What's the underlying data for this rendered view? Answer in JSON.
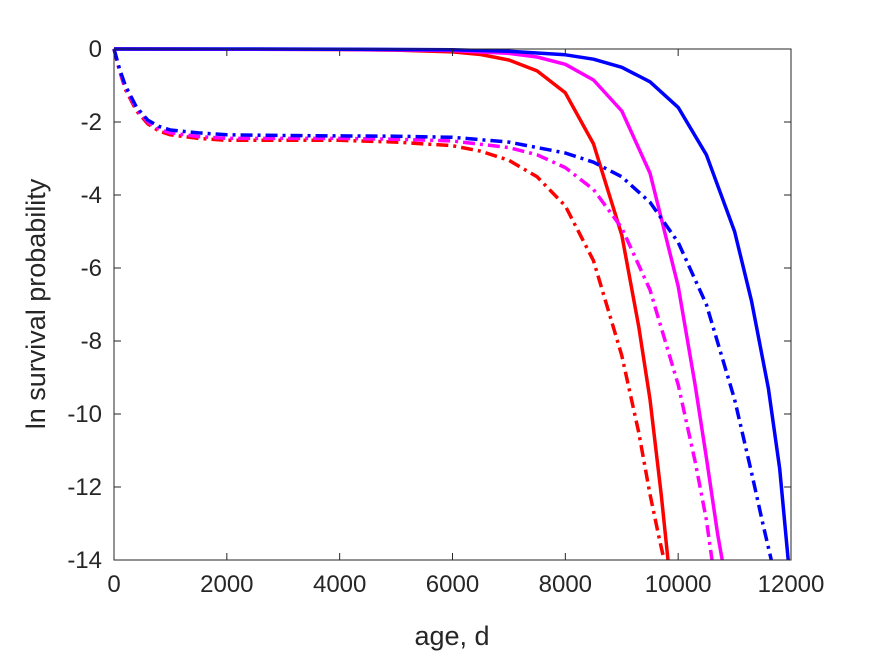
{
  "chart_data": {
    "type": "line",
    "title": "",
    "xlabel": "age, d",
    "ylabel": "ln survival probability",
    "xlim": [
      0,
      12000
    ],
    "ylim": [
      -14,
      0
    ],
    "xticks": [
      0,
      2000,
      4000,
      6000,
      8000,
      10000,
      12000
    ],
    "yticks": [
      0,
      -2,
      -4,
      -6,
      -8,
      -10,
      -12,
      -14
    ],
    "xtick_labels": [
      "0",
      "2000",
      "4000",
      "6000",
      "8000",
      "10000",
      "12000"
    ],
    "ytick_labels": [
      "0",
      "-2",
      "-4",
      "-6",
      "-8",
      "-10",
      "-12",
      "-14"
    ],
    "grid": false,
    "legend": "none",
    "series": [
      {
        "color": "#ff0000",
        "style": "solid",
        "x": [
          0,
          2000,
          4000,
          5000,
          6000,
          6500,
          7000,
          7500,
          8000,
          8500,
          9000,
          9300,
          9500,
          9700,
          9820
        ],
        "y": [
          0,
          -0.005,
          -0.015,
          -0.03,
          -0.08,
          -0.15,
          -0.3,
          -0.6,
          -1.2,
          -2.6,
          -5.1,
          -7.6,
          -9.6,
          -12.2,
          -14
        ]
      },
      {
        "color": "#ff00ff",
        "style": "solid",
        "x": [
          0,
          2000,
          4000,
          6000,
          7000,
          7500,
          8000,
          8500,
          9000,
          9500,
          10000,
          10300,
          10500,
          10700,
          10780
        ],
        "y": [
          0,
          -0.005,
          -0.01,
          -0.04,
          -0.12,
          -0.22,
          -0.42,
          -0.85,
          -1.7,
          -3.4,
          -6.5,
          -9.2,
          -11.2,
          -13.3,
          -14
        ]
      },
      {
        "color": "#0000ff",
        "style": "solid",
        "x": [
          0,
          2000,
          4000,
          6000,
          7000,
          8000,
          8500,
          9000,
          9500,
          10000,
          10500,
          11000,
          11300,
          11600,
          11800,
          11950
        ],
        "y": [
          0,
          0,
          -0.005,
          -0.02,
          -0.06,
          -0.16,
          -0.28,
          -0.5,
          -0.9,
          -1.6,
          -2.9,
          -5.0,
          -6.9,
          -9.3,
          -11.5,
          -14
        ]
      },
      {
        "color": "#ff0000",
        "style": "dashdot",
        "x": [
          0,
          100,
          200,
          400,
          600,
          800,
          1000,
          1500,
          2000,
          3000,
          4000,
          5000,
          6000,
          6500,
          7000,
          7500,
          8000,
          8500,
          9000,
          9300,
          9500,
          9650,
          9750
        ],
        "y": [
          0,
          -0.6,
          -1.1,
          -1.7,
          -2.05,
          -2.25,
          -2.35,
          -2.45,
          -2.5,
          -2.5,
          -2.5,
          -2.55,
          -2.65,
          -2.8,
          -3.05,
          -3.5,
          -4.3,
          -5.8,
          -8.4,
          -10.5,
          -12.2,
          -13.3,
          -14
        ]
      },
      {
        "color": "#ff00ff",
        "style": "dashdot",
        "x": [
          0,
          100,
          200,
          400,
          600,
          800,
          1000,
          1500,
          2000,
          3000,
          4000,
          5000,
          6000,
          7000,
          7500,
          8000,
          8500,
          9000,
          9500,
          10000,
          10300,
          10500,
          10600
        ],
        "y": [
          0,
          -0.6,
          -1.05,
          -1.65,
          -2.0,
          -2.2,
          -2.3,
          -2.4,
          -2.45,
          -2.45,
          -2.45,
          -2.47,
          -2.52,
          -2.7,
          -2.9,
          -3.25,
          -3.85,
          -4.9,
          -6.6,
          -9.2,
          -11.3,
          -12.9,
          -14
        ]
      },
      {
        "color": "#0000ff",
        "style": "dashdot",
        "x": [
          0,
          100,
          200,
          400,
          600,
          800,
          1000,
          1500,
          2000,
          3000,
          4000,
          5000,
          6000,
          7000,
          8000,
          8500,
          9000,
          9500,
          10000,
          10500,
          11000,
          11300,
          11500,
          11650
        ],
        "y": [
          0,
          -0.55,
          -1.0,
          -1.6,
          -1.95,
          -2.12,
          -2.22,
          -2.3,
          -2.35,
          -2.37,
          -2.38,
          -2.39,
          -2.42,
          -2.55,
          -2.85,
          -3.1,
          -3.5,
          -4.2,
          -5.3,
          -7.0,
          -9.6,
          -11.6,
          -13.0,
          -14
        ]
      }
    ]
  }
}
